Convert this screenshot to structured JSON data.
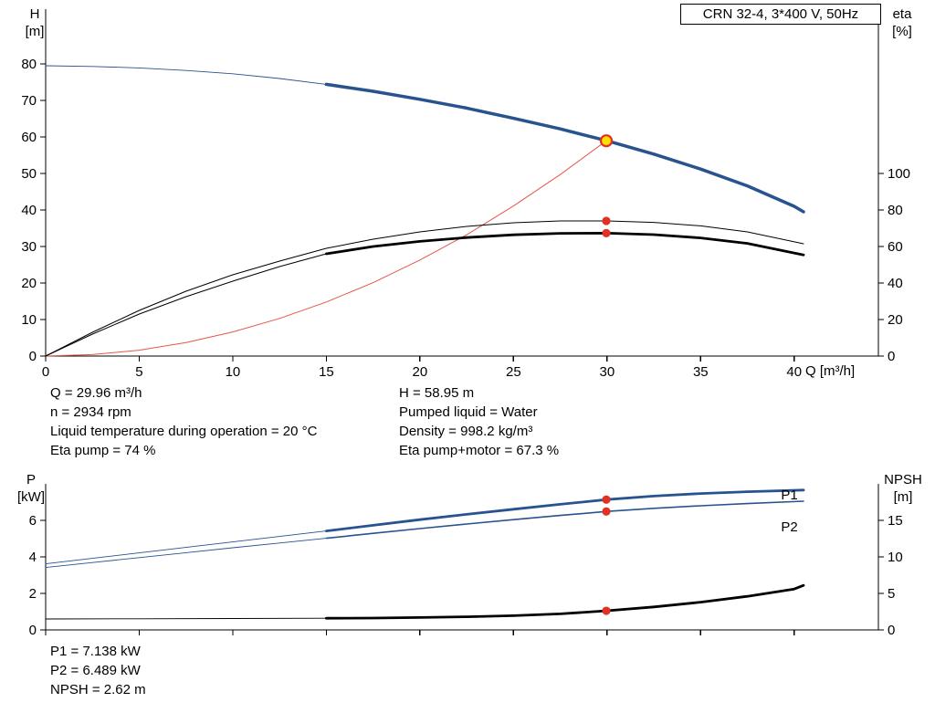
{
  "colors": {
    "blue": "#27538f",
    "red": "#e03127",
    "red_light": "#e4564c",
    "black": "#000000",
    "duty_fill": "#ffdf00"
  },
  "info_top": {
    "left": [
      "Q = 29.96 m³/h",
      "n = 2934 rpm",
      "Liquid temperature during operation = 20 °C",
      "Eta pump = 74 %"
    ],
    "right": [
      "H = 58.95 m",
      "Pumped liquid = Water",
      "Density = 998.2 kg/m³",
      "Eta pump+motor = 67.3 %"
    ]
  },
  "info_bottom": [
    "P1 = 7.138 kW",
    "P2 = 6.489 kW",
    "NPSH = 2.62 m"
  ],
  "chart_data": [
    {
      "type": "line",
      "title": "CRN 32-4, 3*400 V, 50Hz",
      "x_axis": {
        "label": "Q [m³/h]",
        "min": 0,
        "max": 44.5,
        "ticks": [
          0,
          5,
          10,
          15,
          20,
          25,
          30,
          35,
          40
        ],
        "show_tick_labels": true
      },
      "y_left": {
        "label": "H",
        "unit": "[m]",
        "min": 0,
        "max": 95,
        "ticks": [
          0,
          10,
          20,
          30,
          40,
          50,
          60,
          70,
          80
        ]
      },
      "y_right": {
        "label": "eta",
        "unit": "[%]",
        "min": 0,
        "max": 190,
        "ticks": [
          0,
          20,
          40,
          60,
          80,
          100
        ]
      },
      "grid": false,
      "series": [
        {
          "name": "H-Q curve (full)",
          "axis": "left",
          "color": "blue",
          "width": 0.9,
          "x": [
            0,
            2.5,
            5,
            7.5,
            10,
            12.5,
            15,
            17.5,
            20,
            22.5,
            25,
            27.5,
            30,
            32.5,
            35,
            37.5,
            40,
            40.5
          ],
          "y": [
            79.5,
            79.3,
            78.9,
            78.2,
            77.3,
            76.0,
            74.4,
            72.5,
            70.3,
            67.9,
            65.1,
            62.2,
            58.95,
            55.3,
            51.2,
            46.6,
            41.0,
            39.5
          ]
        },
        {
          "name": "H-Q curve (duty range)",
          "axis": "left",
          "color": "blue",
          "width": 3.5,
          "x": [
            15,
            17.5,
            20,
            22.5,
            25,
            27.5,
            30,
            32.5,
            35,
            37.5,
            40,
            40.5
          ],
          "y": [
            74.4,
            72.5,
            70.3,
            67.9,
            65.1,
            62.2,
            58.95,
            55.3,
            51.2,
            46.6,
            41.0,
            39.5
          ]
        },
        {
          "name": "system curve",
          "axis": "left",
          "color": "red_light",
          "width": 1,
          "x": [
            0,
            2.5,
            5,
            7.5,
            10,
            12.5,
            15,
            17.5,
            20,
            22.5,
            25,
            27.5,
            29.96
          ],
          "y": [
            0,
            0.4,
            1.6,
            3.7,
            6.6,
            10.3,
            14.8,
            20.1,
            26.3,
            33.2,
            41.1,
            49.7,
            58.95
          ]
        },
        {
          "name": "eta pump",
          "axis": "right",
          "color": "black",
          "width": 1,
          "x": [
            0,
            2.5,
            5,
            7.5,
            10,
            12.5,
            15,
            17.5,
            20,
            22.5,
            25,
            27.5,
            30,
            32.5,
            35,
            37.5,
            40.5
          ],
          "y": [
            0,
            13,
            25,
            35.5,
            44.5,
            52,
            59,
            64,
            68,
            71,
            73,
            74,
            74,
            73.2,
            71.3,
            68,
            61.5
          ]
        },
        {
          "name": "eta pump+motor (thin)",
          "axis": "right",
          "color": "black",
          "width": 1,
          "x": [
            0,
            2.5,
            5,
            7.5,
            10,
            12.5,
            15
          ],
          "y": [
            0,
            12,
            23,
            32.5,
            41,
            49,
            56
          ]
        },
        {
          "name": "eta pump+motor (duty range)",
          "axis": "right",
          "color": "black",
          "width": 2.8,
          "x": [
            15,
            17.5,
            20,
            22.5,
            25,
            27.5,
            30,
            32.5,
            35,
            37.5,
            40.5
          ],
          "y": [
            56,
            60,
            62.8,
            64.9,
            66.4,
            67.2,
            67.3,
            66.5,
            64.7,
            61.7,
            55.4
          ]
        }
      ],
      "markers": [
        {
          "name": "duty-point",
          "type": "duty",
          "axis": "left",
          "x": 29.96,
          "y": 58.95
        },
        {
          "name": "eta-pump-point",
          "type": "dot",
          "axis": "right",
          "x": 29.96,
          "y": 74
        },
        {
          "name": "eta-total-point",
          "type": "dot",
          "axis": "right",
          "x": 29.96,
          "y": 67.3
        }
      ],
      "annotations": []
    },
    {
      "type": "line",
      "title": "",
      "x_axis": {
        "label": "",
        "min": 0,
        "max": 44.5,
        "ticks": [
          0,
          5,
          10,
          15,
          20,
          25,
          30,
          35,
          40
        ],
        "show_tick_labels": false
      },
      "y_left": {
        "label": "P",
        "unit": "[kW]",
        "min": 0,
        "max": 8,
        "ticks": [
          0,
          2,
          4,
          6
        ]
      },
      "y_right": {
        "label": "NPSH",
        "unit": "[m]",
        "min": 0,
        "max": 20,
        "ticks": [
          0,
          5,
          10,
          15
        ]
      },
      "grid": false,
      "series": [
        {
          "name": "P1 (thin)",
          "axis": "left",
          "color": "blue",
          "width": 0.9,
          "x": [
            0,
            2.5,
            5,
            7.5,
            10,
            12.5,
            15
          ],
          "y": [
            3.62,
            3.92,
            4.22,
            4.52,
            4.82,
            5.12,
            5.42
          ]
        },
        {
          "name": "P1",
          "axis": "left",
          "color": "blue",
          "width": 2.8,
          "x": [
            15,
            17.5,
            20,
            22.5,
            25,
            27.5,
            30,
            32.5,
            35,
            37.5,
            40.5
          ],
          "y": [
            5.42,
            5.73,
            6.04,
            6.33,
            6.61,
            6.88,
            7.14,
            7.33,
            7.47,
            7.57,
            7.66
          ]
        },
        {
          "name": "P2 (thin)",
          "axis": "left",
          "color": "blue",
          "width": 0.9,
          "x": [
            0,
            2.5,
            5,
            7.5,
            10,
            12.5,
            15
          ],
          "y": [
            3.42,
            3.69,
            3.96,
            4.23,
            4.5,
            4.76,
            5.02
          ]
        },
        {
          "name": "P2",
          "axis": "left",
          "color": "blue",
          "width": 1.6,
          "x": [
            15,
            17.5,
            20,
            22.5,
            25,
            27.5,
            30,
            32.5,
            35,
            37.5,
            40.5
          ],
          "y": [
            5.02,
            5.29,
            5.55,
            5.8,
            6.04,
            6.27,
            6.49,
            6.66,
            6.8,
            6.92,
            7.05
          ]
        },
        {
          "name": "NPSH (thin)",
          "axis": "right",
          "color": "black",
          "width": 0.9,
          "x": [
            0,
            5,
            10,
            15
          ],
          "y": [
            1.5,
            1.53,
            1.56,
            1.6
          ]
        },
        {
          "name": "NPSH",
          "axis": "right",
          "color": "black",
          "width": 2.8,
          "x": [
            15,
            17.5,
            20,
            22.5,
            25,
            27.5,
            30,
            32.5,
            35,
            37.5,
            40,
            40.5
          ],
          "y": [
            1.6,
            1.63,
            1.7,
            1.8,
            1.95,
            2.2,
            2.62,
            3.15,
            3.8,
            4.6,
            5.6,
            6.1
          ]
        }
      ],
      "markers": [
        {
          "name": "p1-point",
          "type": "dot",
          "axis": "left",
          "x": 29.96,
          "y": 7.138
        },
        {
          "name": "p2-point",
          "type": "dot",
          "axis": "left",
          "x": 29.96,
          "y": 6.489
        },
        {
          "name": "npsh-point",
          "type": "dot",
          "axis": "right",
          "x": 29.96,
          "y": 2.62
        }
      ],
      "annotations": [
        {
          "text": "P1",
          "axis": "left",
          "x": 39.3,
          "y": 7.15,
          "color": "blue"
        },
        {
          "text": "P2",
          "axis": "left",
          "x": 39.3,
          "y": 5.4,
          "color": "blue"
        }
      ]
    }
  ]
}
